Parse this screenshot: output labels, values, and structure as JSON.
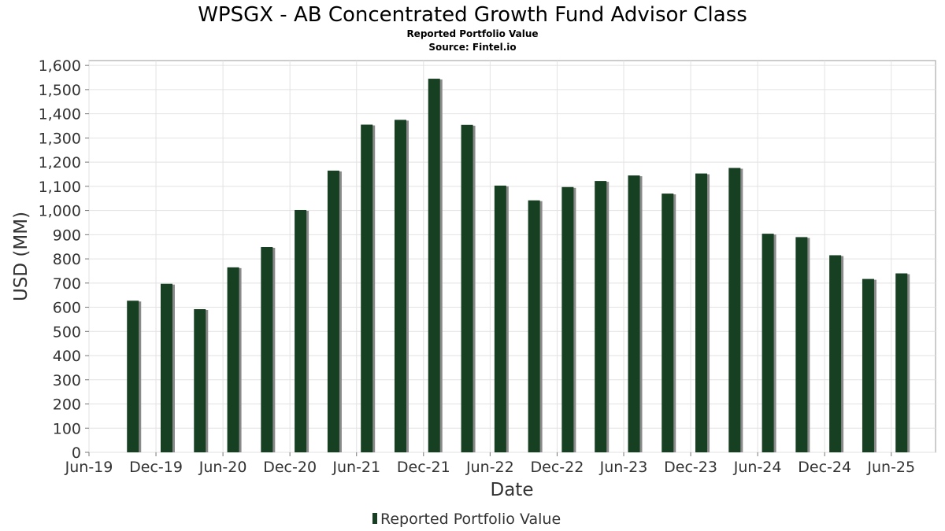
{
  "chart_data": {
    "type": "bar",
    "title": "WPSGX - AB Concentrated Growth Fund Advisor Class",
    "subtitles": [
      "Reported Portfolio Value",
      "Source: Fintel.io"
    ],
    "xlabel": "Date",
    "ylabel": "USD (MM)",
    "ylim": [
      0,
      1620
    ],
    "yticks": [
      0,
      100,
      200,
      300,
      400,
      500,
      600,
      700,
      800,
      900,
      1000,
      1100,
      1200,
      1300,
      1400,
      1500,
      1600
    ],
    "ytick_labels": [
      "0",
      "100",
      "200",
      "300",
      "400",
      "500",
      "600",
      "700",
      "800",
      "900",
      "1,000",
      "1,100",
      "1,200",
      "1,300",
      "1,400",
      "1,500",
      "1,600"
    ],
    "xlim": [
      "2019-06-01",
      "2025-09-30"
    ],
    "xticks": [
      "2019-06-01",
      "2019-12-01",
      "2020-06-01",
      "2020-12-01",
      "2021-06-01",
      "2021-12-01",
      "2022-06-01",
      "2022-12-01",
      "2023-06-01",
      "2023-12-01",
      "2024-06-01",
      "2024-12-01",
      "2025-06-01"
    ],
    "xtick_labels": [
      "Jun-19",
      "Dec-19",
      "Jun-20",
      "Dec-20",
      "Jun-21",
      "Dec-21",
      "Jun-22",
      "Dec-22",
      "Jun-23",
      "Dec-23",
      "Jun-24",
      "Dec-24",
      "Jun-25"
    ],
    "grid": true,
    "legend": "bottom",
    "bar_color": "#173f22",
    "bar_shadow_color": "#8a8a8a",
    "series": [
      {
        "name": "Reported Portfolio Value",
        "x": [
          "2019-09-30",
          "2019-12-31",
          "2020-03-31",
          "2020-06-30",
          "2020-09-30",
          "2020-12-31",
          "2021-03-31",
          "2021-06-30",
          "2021-09-30",
          "2021-12-31",
          "2022-03-31",
          "2022-06-30",
          "2022-09-30",
          "2022-12-31",
          "2023-03-31",
          "2023-06-30",
          "2023-09-30",
          "2023-12-31",
          "2024-03-31",
          "2024-06-30",
          "2024-09-30",
          "2024-12-31",
          "2025-03-31",
          "2025-06-30"
        ],
        "values": [
          627,
          697,
          592,
          765,
          849,
          1002,
          1165,
          1355,
          1375,
          1545,
          1354,
          1103,
          1042,
          1097,
          1122,
          1145,
          1070,
          1153,
          1176,
          904,
          890,
          815,
          717,
          740
        ]
      }
    ]
  }
}
